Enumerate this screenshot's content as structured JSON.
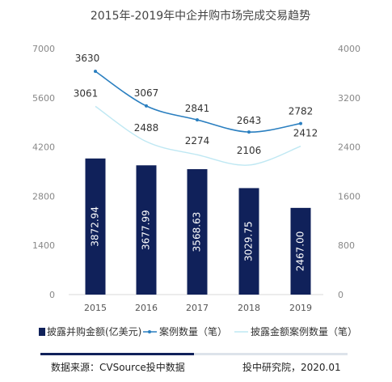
{
  "chart_data": {
    "type": "bar",
    "title": "2015年-2019年中企并购市场完成交易趋势",
    "categories": [
      "2015",
      "2016",
      "2017",
      "2018",
      "2019"
    ],
    "y_left": {
      "ticks": [
        0,
        1400,
        2800,
        4200,
        5600,
        7000
      ],
      "range": [
        0,
        7000
      ]
    },
    "y_right": {
      "ticks": [
        0,
        800,
        1600,
        2400,
        3200,
        4000
      ],
      "range": [
        0,
        4000
      ]
    },
    "series": [
      {
        "name": "披露并购金额(亿美元)",
        "type": "bar",
        "axis": "left",
        "color": "#10215a",
        "values": [
          3872.94,
          3677.99,
          3568.63,
          3029.75,
          2467.0
        ],
        "labels": [
          "3872.94",
          "3677.99",
          "3568.63",
          "3029.75",
          "2467.00"
        ]
      },
      {
        "name": "案例数量（笔）",
        "type": "line",
        "axis": "right",
        "color": "#2a7fc0",
        "values": [
          3630,
          3067,
          2841,
          2643,
          2782
        ],
        "labels": [
          "3630",
          "3067",
          "2841",
          "2643",
          "2782"
        ]
      },
      {
        "name": "披露金额案例数量（笔）",
        "type": "line",
        "axis": "right",
        "color": "#bfe8f3",
        "values": [
          3061,
          2488,
          2274,
          2106,
          2412
        ],
        "labels": [
          "3061",
          "2488",
          "2274",
          "2106",
          "2412"
        ]
      }
    ],
    "grid": false,
    "legend_position": "bottom"
  },
  "footer": {
    "source": "数据来源：CVSource投中数据",
    "credit": "投中研究院，2020.01"
  }
}
